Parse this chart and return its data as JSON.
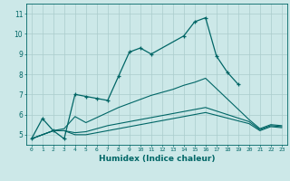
{
  "title": "",
  "xlabel": "Humidex (Indice chaleur)",
  "bg_color": "#cce8e8",
  "grid_color": "#aacccc",
  "line_color": "#006666",
  "xlim": [
    -0.5,
    23.5
  ],
  "ylim": [
    4.5,
    11.5
  ],
  "xticks": [
    0,
    1,
    2,
    3,
    4,
    5,
    6,
    7,
    8,
    9,
    10,
    11,
    12,
    13,
    14,
    15,
    16,
    17,
    18,
    19,
    20,
    21,
    22,
    23
  ],
  "yticks": [
    5,
    6,
    7,
    8,
    9,
    10,
    11
  ],
  "lines": [
    {
      "x": [
        0,
        1,
        2,
        3,
        4,
        5,
        6,
        7,
        8,
        9,
        10,
        11,
        14,
        15,
        16,
        17,
        18,
        19
      ],
      "y": [
        4.8,
        5.8,
        5.2,
        4.8,
        7.0,
        6.9,
        6.8,
        6.7,
        7.9,
        9.1,
        9.3,
        9.0,
        9.9,
        10.6,
        10.8,
        8.9,
        8.1,
        7.5
      ],
      "marker": true
    },
    {
      "x": [
        0,
        2,
        3,
        4,
        5,
        6,
        7,
        8,
        9,
        10,
        11,
        12,
        13,
        14,
        15,
        16,
        20,
        21,
        22,
        23
      ],
      "y": [
        4.8,
        5.2,
        5.3,
        5.9,
        5.6,
        5.85,
        6.1,
        6.35,
        6.55,
        6.75,
        6.95,
        7.1,
        7.25,
        7.45,
        7.6,
        7.8,
        5.75,
        5.3,
        5.5,
        5.45
      ],
      "marker": false
    },
    {
      "x": [
        0,
        2,
        3,
        4,
        5,
        6,
        7,
        8,
        9,
        10,
        11,
        12,
        13,
        14,
        15,
        16,
        20,
        21,
        22,
        23
      ],
      "y": [
        4.8,
        5.2,
        5.2,
        5.1,
        5.15,
        5.3,
        5.45,
        5.55,
        5.65,
        5.75,
        5.85,
        5.95,
        6.05,
        6.15,
        6.25,
        6.35,
        5.65,
        5.25,
        5.45,
        5.4
      ],
      "marker": false
    },
    {
      "x": [
        0,
        2,
        3,
        4,
        5,
        6,
        7,
        8,
        9,
        10,
        11,
        12,
        13,
        14,
        15,
        16,
        20,
        21,
        22,
        23
      ],
      "y": [
        4.8,
        5.2,
        5.2,
        5.0,
        5.0,
        5.1,
        5.2,
        5.3,
        5.4,
        5.5,
        5.6,
        5.7,
        5.8,
        5.9,
        6.0,
        6.1,
        5.55,
        5.2,
        5.4,
        5.35
      ],
      "marker": false
    }
  ]
}
